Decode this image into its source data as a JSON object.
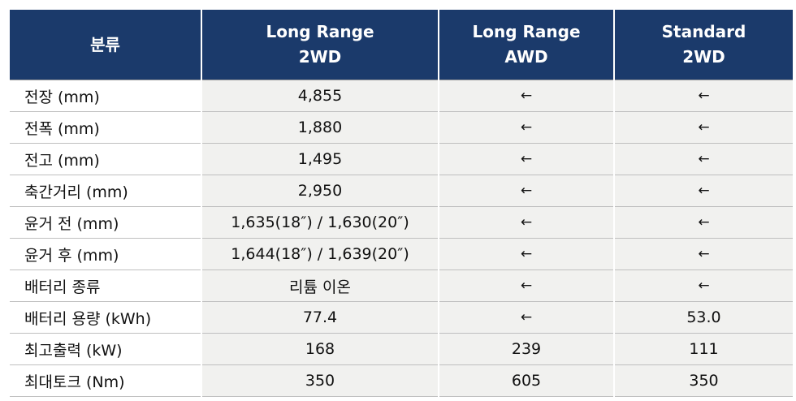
{
  "table": {
    "headers": [
      "분류",
      "Long Range\n2WD",
      "Long Range\nAWD",
      "Standard\n2WD"
    ],
    "rows": [
      [
        "전장 (mm)",
        "4,855",
        "←",
        "←"
      ],
      [
        "전폭 (mm)",
        "1,880",
        "←",
        "←"
      ],
      [
        "전고 (mm)",
        "1,495",
        "←",
        "←"
      ],
      [
        "축간거리 (mm)",
        "2,950",
        "←",
        "←"
      ],
      [
        "윤거 전 (mm)",
        "1,635(18″) / 1,630(20″)",
        "←",
        "←"
      ],
      [
        "윤거 후 (mm)",
        "1,644(18″) / 1,639(20″)",
        "←",
        "←"
      ],
      [
        "배터리 종류",
        "리튬 이온",
        "←",
        "←"
      ],
      [
        "배터리 용량 (kWh)",
        "77.4",
        "←",
        "53.0"
      ],
      [
        "최고출력 (kW)",
        "168",
        "239",
        "111"
      ],
      [
        "최대토크 (Nm)",
        "350",
        "605",
        "350"
      ]
    ]
  },
  "colors": {
    "header_bg": "#1b3a6b",
    "header_text": "#ffffff",
    "cell_bg": "#f1f1ef",
    "row_border": "#bfbfbf"
  }
}
